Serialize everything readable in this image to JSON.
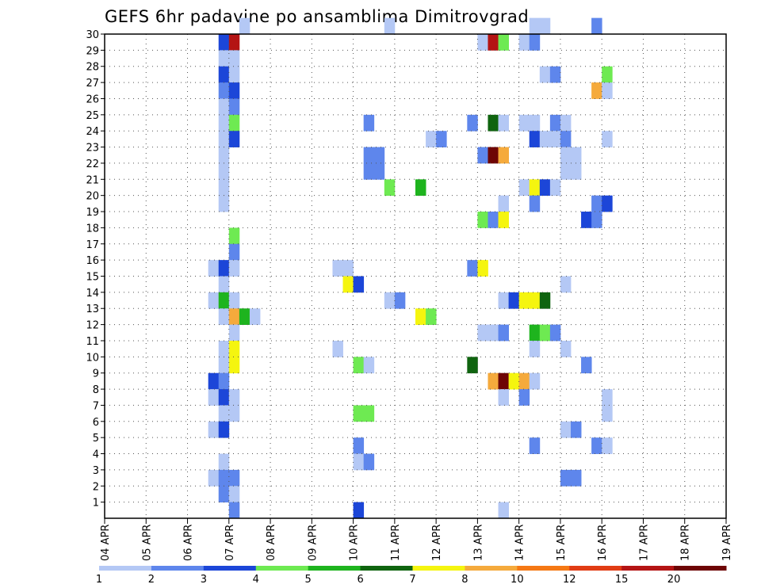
{
  "chart_data": {
    "type": "heatmap",
    "title": "GEFS 6hr padavine po ansamblima Dimitrovgrad",
    "xlabel": "",
    "ylabel": "",
    "x_ticks": [
      "04 APR",
      "05 APR",
      "06 APR",
      "07 APR",
      "08 APR",
      "09 APR",
      "10 APR",
      "11 APR",
      "12 APR",
      "13 APR",
      "14 APR",
      "15 APR",
      "16 APR",
      "17 APR",
      "18 APR",
      "19 APR"
    ],
    "y_ticks": [
      "1",
      "2",
      "3",
      "4",
      "5",
      "6",
      "7",
      "8",
      "9",
      "10",
      "11",
      "12",
      "13",
      "14",
      "15",
      "16",
      "17",
      "18",
      "19",
      "20",
      "21",
      "22",
      "23",
      "24",
      "25",
      "26",
      "27",
      "28",
      "29",
      "30"
    ],
    "x_range_days": [
      0,
      15
    ],
    "y_range": [
      0,
      30
    ],
    "grid": true,
    "colorbar": {
      "position": "bottom",
      "labels": [
        "1",
        "2",
        "3",
        "4",
        "5",
        "6",
        "7",
        "8",
        "10",
        "12",
        "15",
        "20"
      ],
      "colors": [
        "#b4c8f5",
        "#5e86ec",
        "#1c46d8",
        "#6eea52",
        "#1eb41e",
        "#0f640f",
        "#f5f50f",
        "#f5aa3c",
        "#f57814",
        "#e13c14",
        "#b41414",
        "#6e0505"
      ]
    },
    "cell_encoding": "each cell is [column index in 6-hour steps starting 04 APR 00z, ensemble member, color class index 0-11]",
    "cells": [
      [
        13,
        30,
        0
      ],
      [
        27,
        30,
        0
      ],
      [
        41,
        30,
        0
      ],
      [
        42,
        30,
        0
      ],
      [
        47,
        30,
        1
      ],
      [
        11,
        29,
        2
      ],
      [
        12,
        29,
        10
      ],
      [
        36,
        29,
        0
      ],
      [
        37,
        29,
        10
      ],
      [
        38,
        29,
        3
      ],
      [
        40,
        29,
        0
      ],
      [
        41,
        29,
        1
      ],
      [
        11,
        28,
        0
      ],
      [
        12,
        28,
        0
      ],
      [
        11,
        27,
        2
      ],
      [
        12,
        27,
        0
      ],
      [
        42,
        27,
        0
      ],
      [
        43,
        27,
        1
      ],
      [
        48,
        27,
        3
      ],
      [
        11,
        26,
        1
      ],
      [
        12,
        26,
        2
      ],
      [
        47,
        26,
        7
      ],
      [
        48,
        26,
        0
      ],
      [
        11,
        25,
        0
      ],
      [
        12,
        25,
        1
      ],
      [
        11,
        24,
        0
      ],
      [
        12,
        24,
        3
      ],
      [
        25,
        24,
        1
      ],
      [
        35,
        24,
        1
      ],
      [
        37,
        24,
        5
      ],
      [
        38,
        24,
        0
      ],
      [
        40,
        24,
        0
      ],
      [
        41,
        24,
        0
      ],
      [
        43,
        24,
        1
      ],
      [
        44,
        24,
        0
      ],
      [
        11,
        23,
        0
      ],
      [
        12,
        23,
        2
      ],
      [
        31,
        23,
        0
      ],
      [
        32,
        23,
        1
      ],
      [
        41,
        23,
        2
      ],
      [
        42,
        23,
        0
      ],
      [
        43,
        23,
        0
      ],
      [
        44,
        23,
        1
      ],
      [
        48,
        23,
        0
      ],
      [
        11,
        22,
        0
      ],
      [
        25,
        22,
        1
      ],
      [
        26,
        22,
        1
      ],
      [
        36,
        22,
        1
      ],
      [
        37,
        22,
        11
      ],
      [
        38,
        22,
        7
      ],
      [
        44,
        22,
        0
      ],
      [
        45,
        22,
        0
      ],
      [
        11,
        21,
        0
      ],
      [
        25,
        21,
        1
      ],
      [
        26,
        21,
        1
      ],
      [
        44,
        21,
        0
      ],
      [
        45,
        21,
        0
      ],
      [
        11,
        20,
        0
      ],
      [
        27,
        20,
        3
      ],
      [
        30,
        20,
        4
      ],
      [
        40,
        20,
        0
      ],
      [
        41,
        20,
        6
      ],
      [
        42,
        20,
        2
      ],
      [
        43,
        20,
        0
      ],
      [
        11,
        19,
        0
      ],
      [
        38,
        19,
        0
      ],
      [
        41,
        19,
        1
      ],
      [
        47,
        19,
        1
      ],
      [
        48,
        19,
        2
      ],
      [
        36,
        18,
        3
      ],
      [
        37,
        18,
        1
      ],
      [
        38,
        18,
        6
      ],
      [
        46,
        18,
        2
      ],
      [
        47,
        18,
        1
      ],
      [
        12,
        17,
        3
      ],
      [
        12,
        16,
        1
      ],
      [
        10,
        15,
        0
      ],
      [
        11,
        15,
        2
      ],
      [
        12,
        15,
        0
      ],
      [
        22,
        15,
        0
      ],
      [
        23,
        15,
        0
      ],
      [
        35,
        15,
        1
      ],
      [
        36,
        15,
        6
      ],
      [
        11,
        14,
        0
      ],
      [
        23,
        14,
        6
      ],
      [
        24,
        14,
        2
      ],
      [
        44,
        14,
        0
      ],
      [
        10,
        13,
        0
      ],
      [
        11,
        13,
        4
      ],
      [
        12,
        13,
        0
      ],
      [
        27,
        13,
        0
      ],
      [
        28,
        13,
        1
      ],
      [
        38,
        13,
        0
      ],
      [
        39,
        13,
        2
      ],
      [
        40,
        13,
        6
      ],
      [
        41,
        13,
        6
      ],
      [
        42,
        13,
        5
      ],
      [
        11,
        12,
        0
      ],
      [
        12,
        12,
        7
      ],
      [
        13,
        12,
        4
      ],
      [
        14,
        12,
        0
      ],
      [
        30,
        12,
        6
      ],
      [
        31,
        12,
        3
      ],
      [
        12,
        11,
        0
      ],
      [
        36,
        11,
        0
      ],
      [
        37,
        11,
        0
      ],
      [
        38,
        11,
        1
      ],
      [
        41,
        11,
        4
      ],
      [
        42,
        11,
        3
      ],
      [
        43,
        11,
        1
      ],
      [
        11,
        10,
        0
      ],
      [
        12,
        10,
        6
      ],
      [
        22,
        10,
        0
      ],
      [
        41,
        10,
        0
      ],
      [
        44,
        10,
        0
      ],
      [
        11,
        9,
        0
      ],
      [
        12,
        9,
        6
      ],
      [
        24,
        9,
        3
      ],
      [
        25,
        9,
        0
      ],
      [
        35,
        9,
        5
      ],
      [
        46,
        9,
        1
      ],
      [
        10,
        8,
        2
      ],
      [
        11,
        8,
        1
      ],
      [
        37,
        8,
        7
      ],
      [
        38,
        8,
        11
      ],
      [
        39,
        8,
        6
      ],
      [
        40,
        8,
        7
      ],
      [
        41,
        8,
        0
      ],
      [
        10,
        7,
        0
      ],
      [
        11,
        7,
        2
      ],
      [
        12,
        7,
        0
      ],
      [
        38,
        7,
        0
      ],
      [
        40,
        7,
        1
      ],
      [
        48,
        7,
        0
      ],
      [
        11,
        6,
        0
      ],
      [
        12,
        6,
        0
      ],
      [
        24,
        6,
        3
      ],
      [
        25,
        6,
        3
      ],
      [
        48,
        6,
        0
      ],
      [
        10,
        5,
        0
      ],
      [
        11,
        5,
        2
      ],
      [
        44,
        5,
        0
      ],
      [
        45,
        5,
        1
      ],
      [
        24,
        4,
        1
      ],
      [
        41,
        4,
        1
      ],
      [
        47,
        4,
        1
      ],
      [
        48,
        4,
        0
      ],
      [
        11,
        3,
        0
      ],
      [
        24,
        3,
        0
      ],
      [
        25,
        3,
        1
      ],
      [
        10,
        2,
        0
      ],
      [
        11,
        2,
        1
      ],
      [
        12,
        2,
        1
      ],
      [
        44,
        2,
        1
      ],
      [
        45,
        2,
        1
      ],
      [
        11,
        1,
        1
      ],
      [
        12,
        1,
        0
      ],
      [
        12,
        0,
        1
      ],
      [
        24,
        0,
        2
      ],
      [
        38,
        0,
        0
      ]
    ]
  }
}
